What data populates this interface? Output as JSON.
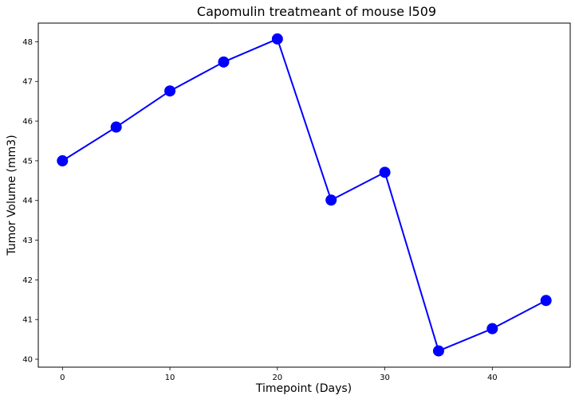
{
  "chart_data": {
    "type": "line",
    "title": "Capomulin treatmeant of mouse l509",
    "xlabel": "Timepoint (Days)",
    "ylabel": "Tumor Volume (mm3)",
    "x": [
      0,
      5,
      10,
      15,
      20,
      25,
      30,
      35,
      40,
      45
    ],
    "series": [
      {
        "values": [
          45.0,
          45.85,
          46.76,
          47.49,
          48.07,
          44.01,
          44.71,
          40.21,
          40.77,
          41.48
        ],
        "color": "#0000ff",
        "marker": "circle"
      }
    ],
    "xlim": [
      -2.25,
      47.25
    ],
    "ylim": [
      39.8,
      48.47
    ],
    "xticks": [
      0,
      10,
      20,
      30,
      40
    ],
    "yticks": [
      40,
      41,
      42,
      43,
      44,
      45,
      46,
      47,
      48
    ],
    "grid": false,
    "legend": "none"
  }
}
